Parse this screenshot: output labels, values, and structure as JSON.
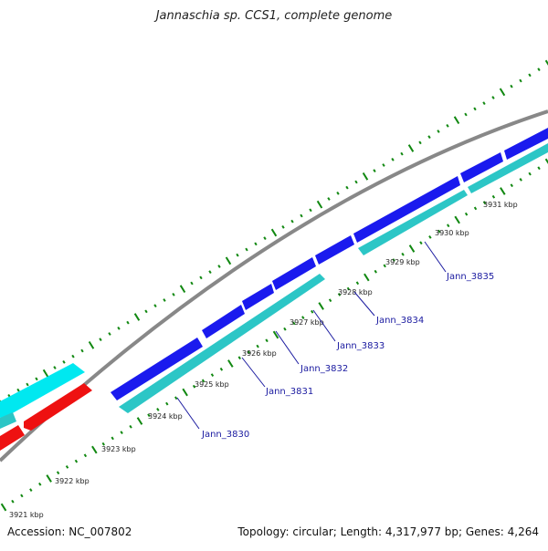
{
  "title": "Jannaschia sp. CCS1, complete genome",
  "footer": {
    "accession": "Accession: NC_007802",
    "summary": "Topology: circular; Length: 4,317,977 bp; Genes: 4,264"
  },
  "colors": {
    "forward_gene": "#1a1aee",
    "reverse_gene": "#2cc6c6",
    "outer_left_track": "#00e8f0",
    "left_red_track": "#ee1111",
    "backbone": "#888888",
    "ticks": "#118811",
    "label": "#1a1aa0"
  },
  "ticks": [
    {
      "label": "3921 kbp"
    },
    {
      "label": "3922 kbp"
    },
    {
      "label": "3923 kbp"
    },
    {
      "label": "3924 kbp"
    },
    {
      "label": "3925 kbp"
    },
    {
      "label": "3926 kbp"
    },
    {
      "label": "3927 kbp"
    },
    {
      "label": "3928 kbp"
    },
    {
      "label": "3929 kbp"
    },
    {
      "label": "3930 kbp"
    },
    {
      "label": "3931 kbp"
    }
  ],
  "gene_labels": [
    {
      "text": "Jann_3830"
    },
    {
      "text": "Jann_3831"
    },
    {
      "text": "Jann_3832"
    },
    {
      "text": "Jann_3833"
    },
    {
      "text": "Jann_3834"
    },
    {
      "text": "Jann_3835"
    }
  ]
}
